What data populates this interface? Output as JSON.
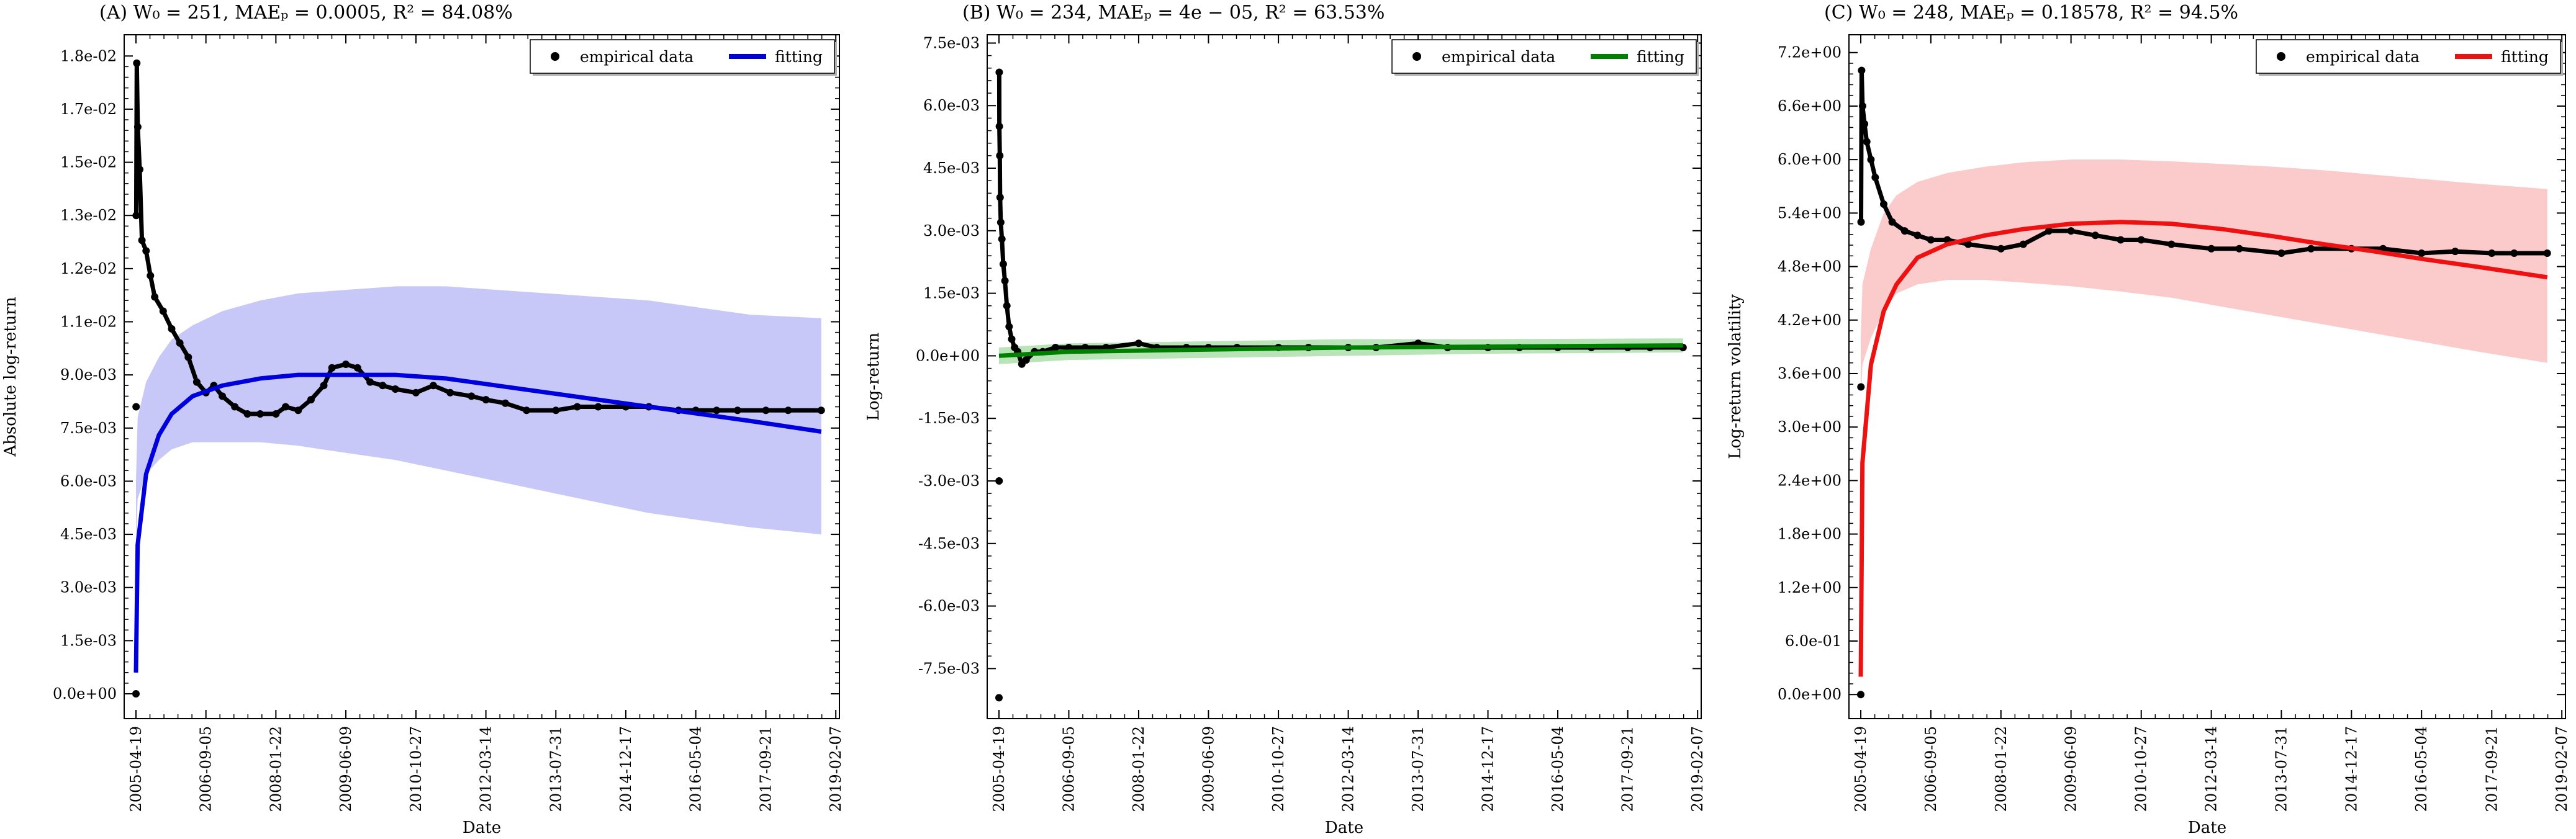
{
  "chart_data": [
    {
      "type": "scatter",
      "title": "(A) W₀ = 251, MAEₚ = 0.0005, R² = 84.08%",
      "xlabel": "Date",
      "ylabel": "Absolute log-return",
      "x_ticks": [
        "2005-04-19",
        "2006-09-05",
        "2008-01-22",
        "2009-06-09",
        "2010-10-27",
        "2012-03-14",
        "2013-07-31",
        "2014-12-17",
        "2016-05-04",
        "2017-09-21",
        "2019-02-07"
      ],
      "xlim": [
        "2005-01-24",
        "2019-03-05"
      ],
      "ylim": [
        -0.0007,
        0.0186
      ],
      "y_ticks": [
        0.0,
        0.0015,
        0.003,
        0.0045,
        0.006,
        0.0075,
        0.009,
        0.0105,
        0.012,
        0.0135,
        0.015,
        0.0165,
        0.018
      ],
      "y_tick_labels": [
        "0.0e+00",
        "1.5e-03",
        "3.0e-03",
        "4.5e-03",
        "6.0e-03",
        "7.5e-03",
        "9.0e-03",
        "1.1e-02",
        "1.2e-02",
        "1.3e-02",
        "1.5e-02",
        "1.7e-02",
        "1.8e-02"
      ],
      "fit_color": "#0000dd",
      "band_color": "#c8c8f8",
      "legend": {
        "position": "top-right",
        "entries": [
          "empirical data",
          "fitting"
        ]
      },
      "series": [
        {
          "name": "empirical data",
          "kind": "points",
          "x": [
            "2005-04-19",
            "2005-04-20",
            "2005-04-21",
            "2005-04-25",
            "2005-05-02",
            "2005-05-16",
            "2005-06-01",
            "2005-07-01",
            "2005-08-01",
            "2005-09-01",
            "2005-11-01",
            "2006-01-01",
            "2006-03-01",
            "2006-05-01",
            "2006-07-01",
            "2006-09-05",
            "2006-11-01",
            "2007-01-01",
            "2007-04-01",
            "2007-07-01",
            "2007-10-01",
            "2008-01-22",
            "2008-04-01",
            "2008-07-01",
            "2008-10-01",
            "2009-01-01",
            "2009-03-01",
            "2009-06-09",
            "2009-09-01",
            "2009-12-01",
            "2010-03-01",
            "2010-06-01",
            "2010-10-27",
            "2011-03-01",
            "2011-07-01",
            "2011-12-01",
            "2012-03-14",
            "2012-08-01",
            "2013-01-01",
            "2013-07-31",
            "2014-01-01",
            "2014-06-01",
            "2014-12-17",
            "2015-06-01",
            "2016-01-01",
            "2016-05-04",
            "2016-10-01",
            "2017-03-01",
            "2017-09-21",
            "2018-03-01",
            "2018-10-25"
          ],
          "y": [
            0.0,
            0.0081,
            0.0135,
            0.0178,
            0.016,
            0.0148,
            0.0128,
            0.0125,
            0.0118,
            0.0112,
            0.0108,
            0.0103,
            0.0099,
            0.0095,
            0.0088,
            0.0085,
            0.0087,
            0.0084,
            0.0081,
            0.0079,
            0.0079,
            0.0079,
            0.0081,
            0.008,
            0.0083,
            0.0087,
            0.0092,
            0.0093,
            0.0092,
            0.0088,
            0.0087,
            0.0086,
            0.0085,
            0.0087,
            0.0085,
            0.0084,
            0.0083,
            0.0082,
            0.008,
            0.008,
            0.0081,
            0.0081,
            0.0081,
            0.0081,
            0.008,
            0.008,
            0.008,
            0.008,
            0.008,
            0.008,
            0.008
          ]
        },
        {
          "name": "fitting",
          "kind": "line",
          "x": [
            "2005-04-19",
            "2005-05-01",
            "2005-07-01",
            "2005-10-01",
            "2006-01-01",
            "2006-06-01",
            "2007-01-01",
            "2007-10-01",
            "2008-07-01",
            "2009-06-09",
            "2010-06-01",
            "2011-06-01",
            "2012-06-01",
            "2013-06-01",
            "2014-06-01",
            "2015-06-01",
            "2016-06-01",
            "2017-06-01",
            "2018-10-25"
          ],
          "y": [
            0.0006,
            0.0042,
            0.0062,
            0.0073,
            0.0079,
            0.0084,
            0.0087,
            0.0089,
            0.009,
            0.009,
            0.009,
            0.0089,
            0.0087,
            0.0085,
            0.0083,
            0.0081,
            0.0079,
            0.0077,
            0.0074
          ]
        },
        {
          "name": "band",
          "kind": "band",
          "x": [
            "2005-04-19",
            "2005-05-01",
            "2005-07-01",
            "2005-10-01",
            "2006-01-01",
            "2006-06-01",
            "2007-01-01",
            "2007-10-01",
            "2008-07-01",
            "2009-06-09",
            "2010-06-01",
            "2011-06-01",
            "2012-06-01",
            "2013-06-01",
            "2014-06-01",
            "2015-06-01",
            "2016-06-01",
            "2017-06-01",
            "2018-10-25"
          ],
          "lower": [
            0.0042,
            0.0055,
            0.0062,
            0.0066,
            0.0069,
            0.0071,
            0.0071,
            0.0071,
            0.007,
            0.0068,
            0.0066,
            0.0063,
            0.006,
            0.0057,
            0.0054,
            0.0051,
            0.0049,
            0.0047,
            0.0045
          ],
          "upper": [
            0.006,
            0.0078,
            0.0088,
            0.0095,
            0.01,
            0.0104,
            0.0108,
            0.0111,
            0.0113,
            0.0114,
            0.0115,
            0.0115,
            0.0114,
            0.0113,
            0.0112,
            0.0111,
            0.0109,
            0.0107,
            0.0106
          ]
        }
      ]
    },
    {
      "type": "scatter",
      "title": "(B) W₀ = 234, MAEₚ = 4e − 05, R² = 63.53%",
      "xlabel": "Date",
      "ylabel": "Log-return",
      "x_ticks": [
        "2005-04-19",
        "2006-09-05",
        "2008-01-22",
        "2009-06-09",
        "2010-10-27",
        "2012-03-14",
        "2013-07-31",
        "2014-12-17",
        "2016-05-04",
        "2017-09-21",
        "2019-02-07"
      ],
      "xlim": [
        "2005-01-24",
        "2019-03-05"
      ],
      "ylim": [
        -0.0087,
        0.0077
      ],
      "y_ticks": [
        -0.0075,
        -0.006,
        -0.0045,
        -0.003,
        -0.0015,
        0.0,
        0.0015,
        0.003,
        0.0045,
        0.006,
        0.0075
      ],
      "y_tick_labels": [
        "-7.5e-03",
        "-6.0e-03",
        "-4.5e-03",
        "-3.0e-03",
        "-1.5e-03",
        "0.0e+00",
        "1.5e-03",
        "3.0e-03",
        "4.5e-03",
        "6.0e-03",
        "7.5e-03"
      ],
      "fit_color": "#008000",
      "band_color": "#b8e4b8",
      "legend": {
        "position": "top-right",
        "entries": [
          "empirical data",
          "fitting"
        ]
      },
      "series": [
        {
          "name": "empirical data",
          "kind": "points",
          "x": [
            "2005-04-19",
            "2005-04-20",
            "2005-04-21",
            "2005-04-22",
            "2005-04-25",
            "2005-04-27",
            "2005-05-02",
            "2005-05-10",
            "2005-05-20",
            "2005-06-01",
            "2005-06-15",
            "2005-07-01",
            "2005-07-20",
            "2005-08-10",
            "2005-09-01",
            "2005-10-01",
            "2005-11-01",
            "2006-01-01",
            "2006-03-01",
            "2006-06-01",
            "2006-09-05",
            "2007-01-01",
            "2007-06-01",
            "2008-01-22",
            "2008-06-01",
            "2009-01-01",
            "2009-06-09",
            "2010-01-01",
            "2010-10-27",
            "2011-06-01",
            "2012-03-14",
            "2012-10-01",
            "2013-07-31",
            "2014-03-01",
            "2014-12-17",
            "2015-08-01",
            "2016-05-04",
            "2017-01-01",
            "2017-09-21",
            "2018-03-01",
            "2018-10-25"
          ],
          "y": [
            -0.0082,
            -0.003,
            0.0068,
            0.0055,
            0.0048,
            0.0038,
            0.0032,
            0.0028,
            0.0022,
            0.0018,
            0.0012,
            0.0007,
            0.0004,
            0.0002,
            0.0001,
            -0.0002,
            -0.0001,
            0.0001,
            0.0001,
            0.0002,
            0.0002,
            0.0002,
            0.0002,
            0.0003,
            0.0002,
            0.0002,
            0.0002,
            0.0002,
            0.0002,
            0.0002,
            0.0002,
            0.0002,
            0.0003,
            0.0002,
            0.0002,
            0.0002,
            0.0002,
            0.0002,
            0.0002,
            0.0002,
            0.0002
          ]
        },
        {
          "name": "fitting",
          "kind": "line",
          "x": [
            "2005-04-19",
            "2006-09-05",
            "2009-06-09",
            "2012-03-14",
            "2014-12-17",
            "2018-10-25"
          ],
          "y": [
            0.0,
            0.0001,
            0.00015,
            0.0002,
            0.00022,
            0.00025
          ]
        },
        {
          "name": "band",
          "kind": "band",
          "x": [
            "2005-04-19",
            "2006-09-05",
            "2009-06-09",
            "2012-03-14",
            "2014-12-17",
            "2018-10-25"
          ],
          "lower": [
            -0.0002,
            -0.0001,
            -5e-05,
            0.0,
            5e-05,
            8e-05
          ],
          "upper": [
            0.0002,
            0.0003,
            0.00035,
            0.0004,
            0.0004,
            0.00042
          ]
        }
      ]
    },
    {
      "type": "scatter",
      "title": "(C) W₀ = 248, MAEₚ = 0.18578, R² = 94.5%",
      "xlabel": "Date",
      "ylabel": "Log-return volatility",
      "x_ticks": [
        "2005-04-19",
        "2006-09-05",
        "2008-01-22",
        "2009-06-09",
        "2010-10-27",
        "2012-03-14",
        "2013-07-31",
        "2014-12-17",
        "2016-05-04",
        "2017-09-21",
        "2019-02-07"
      ],
      "xlim": [
        "2005-01-24",
        "2019-03-05"
      ],
      "ylim": [
        -0.27,
        7.4
      ],
      "y_ticks": [
        0.0,
        0.6,
        1.2,
        1.8,
        2.4,
        3.0,
        3.6,
        4.2,
        4.8,
        5.4,
        6.0,
        6.6,
        7.2
      ],
      "y_tick_labels": [
        "0.0e+00",
        "6.0e-01",
        "1.2e+00",
        "1.8e+00",
        "2.4e+00",
        "3.0e+00",
        "3.6e+00",
        "4.2e+00",
        "4.8e+00",
        "5.4e+00",
        "6.0e+00",
        "6.6e+00",
        "7.2e+00"
      ],
      "fit_color": "#ee1111",
      "band_color": "#fbcaca",
      "legend": {
        "position": "top-right",
        "entries": [
          "empirical data",
          "fitting"
        ]
      },
      "series": [
        {
          "name": "empirical data",
          "kind": "points",
          "x": [
            "2005-04-19",
            "2005-04-20",
            "2005-04-21",
            "2005-04-25",
            "2005-05-02",
            "2005-05-16",
            "2005-06-01",
            "2005-07-01",
            "2005-08-01",
            "2005-10-01",
            "2005-12-01",
            "2006-03-01",
            "2006-06-01",
            "2006-09-05",
            "2007-01-01",
            "2007-06-01",
            "2008-01-22",
            "2008-07-01",
            "2009-01-01",
            "2009-06-09",
            "2009-12-01",
            "2010-06-01",
            "2010-10-27",
            "2011-06-01",
            "2012-03-14",
            "2012-10-01",
            "2013-07-31",
            "2014-03-01",
            "2014-12-17",
            "2015-08-01",
            "2016-05-04",
            "2017-01-01",
            "2017-09-21",
            "2018-03-01",
            "2018-10-25"
          ],
          "y": [
            0.0,
            3.45,
            5.3,
            7.0,
            6.6,
            6.4,
            6.2,
            6.0,
            5.8,
            5.5,
            5.3,
            5.2,
            5.15,
            5.1,
            5.1,
            5.05,
            5.0,
            5.05,
            5.2,
            5.2,
            5.15,
            5.1,
            5.1,
            5.05,
            5.0,
            5.0,
            4.95,
            5.0,
            5.0,
            5.0,
            4.95,
            4.97,
            4.95,
            4.95,
            4.95
          ]
        },
        {
          "name": "fitting",
          "kind": "line",
          "x": [
            "2005-04-19",
            "2005-05-01",
            "2005-07-01",
            "2005-10-01",
            "2006-01-01",
            "2006-06-01",
            "2007-01-01",
            "2007-10-01",
            "2008-07-01",
            "2009-06-09",
            "2010-06-01",
            "2011-06-01",
            "2012-06-01",
            "2013-06-01",
            "2014-06-01",
            "2015-06-01",
            "2016-06-01",
            "2017-06-01",
            "2018-10-25"
          ],
          "y": [
            0.2,
            2.6,
            3.7,
            4.3,
            4.6,
            4.9,
            5.05,
            5.15,
            5.22,
            5.28,
            5.3,
            5.28,
            5.22,
            5.14,
            5.05,
            4.97,
            4.88,
            4.8,
            4.68
          ]
        },
        {
          "name": "band",
          "kind": "band",
          "x": [
            "2005-04-19",
            "2005-05-01",
            "2005-07-01",
            "2005-10-01",
            "2006-01-01",
            "2006-06-01",
            "2007-01-01",
            "2007-10-01",
            "2008-07-01",
            "2009-06-09",
            "2010-06-01",
            "2011-06-01",
            "2012-06-01",
            "2013-06-01",
            "2014-06-01",
            "2015-06-01",
            "2016-06-01",
            "2017-06-01",
            "2018-10-25"
          ],
          "lower": [
            3.3,
            3.7,
            4.0,
            4.3,
            4.5,
            4.6,
            4.65,
            4.65,
            4.62,
            4.58,
            4.52,
            4.45,
            4.35,
            4.25,
            4.15,
            4.05,
            3.95,
            3.85,
            3.72
          ],
          "upper": [
            4.0,
            4.6,
            5.0,
            5.4,
            5.6,
            5.75,
            5.85,
            5.92,
            5.97,
            6.0,
            6.0,
            5.98,
            5.95,
            5.92,
            5.88,
            5.83,
            5.78,
            5.73,
            5.67
          ]
        }
      ]
    }
  ]
}
